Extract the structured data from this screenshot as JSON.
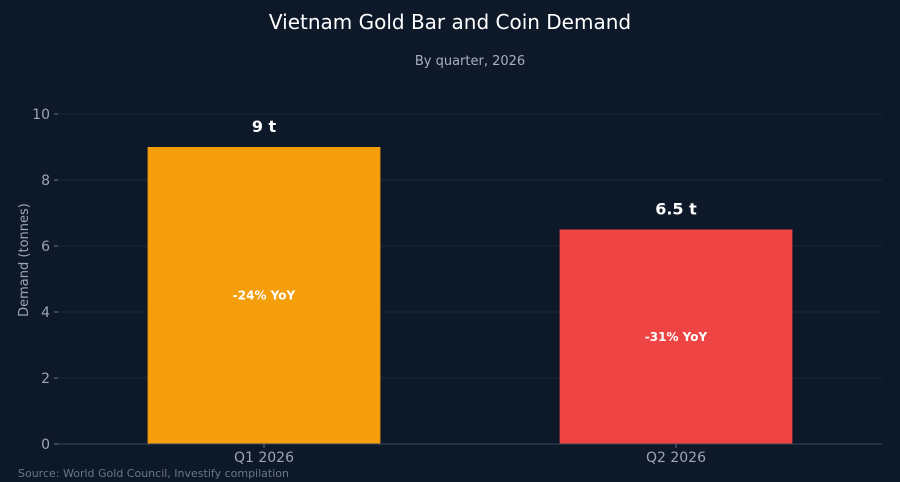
{
  "chart_data": {
    "type": "bar",
    "title": "Vietnam Gold Bar and Coin Demand",
    "subtitle": "By quarter, 2026",
    "ylabel": "Demand (tonnes)",
    "xlabel": "",
    "categories": [
      "Q1 2026",
      "Q2 2026"
    ],
    "values": [
      9,
      6.5
    ],
    "value_labels": [
      "9 t",
      "6.5 t"
    ],
    "annotations": [
      "-24% YoY",
      "-31% YoY"
    ],
    "bar_colors": [
      "#f59e0b",
      "#ef4444"
    ],
    "ylim": [
      0,
      10
    ],
    "yticks": [
      0,
      2,
      4,
      6,
      8,
      10
    ],
    "grid": true,
    "legend": "none"
  },
  "source": "Source: World Gold Council, Investify compilation"
}
